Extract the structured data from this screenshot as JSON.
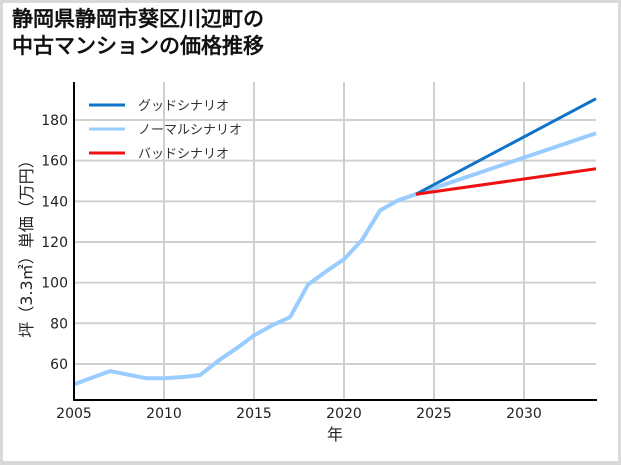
{
  "chart_data": {
    "type": "line",
    "title": "静岡県静岡市葵区川辺町の\n中古マンションの価格推移",
    "title_lines": [
      "静岡県静岡市葵区川辺町の",
      "中古マンションの価格推移"
    ],
    "xlabel": "年",
    "ylabel": "坪（3.3㎡）単価（万円）",
    "xlim": [
      2005,
      2034
    ],
    "ylim": [
      42,
      198
    ],
    "xticks": [
      2005,
      2010,
      2015,
      2020,
      2025,
      2030
    ],
    "yticks": [
      60,
      80,
      100,
      120,
      140,
      160,
      180
    ],
    "grid": true,
    "legend_position": "upper left",
    "series": [
      {
        "name": "グッドシナリオ",
        "color": "#0f74c8",
        "x": [
          2024,
          2034
        ],
        "values": [
          143.5,
          190.5
        ]
      },
      {
        "name": "ノーマルシナリオ",
        "color": "#99ccff",
        "x": [
          2005,
          2007,
          2009,
          2010,
          2011,
          2012,
          2013,
          2014,
          2015,
          2016,
          2017,
          2018,
          2019,
          2020,
          2021,
          2022,
          2023,
          2024,
          2034
        ],
        "values": [
          50,
          56.5,
          53,
          53,
          53.5,
          54.5,
          61.5,
          67.5,
          74,
          79,
          83,
          99,
          105.5,
          111.5,
          121,
          135.5,
          140.5,
          143.5,
          173.5
        ]
      },
      {
        "name": "バッドシナリオ",
        "color": "#ee1111",
        "x": [
          2024,
          2034
        ],
        "values": [
          143.5,
          156
        ]
      }
    ]
  }
}
